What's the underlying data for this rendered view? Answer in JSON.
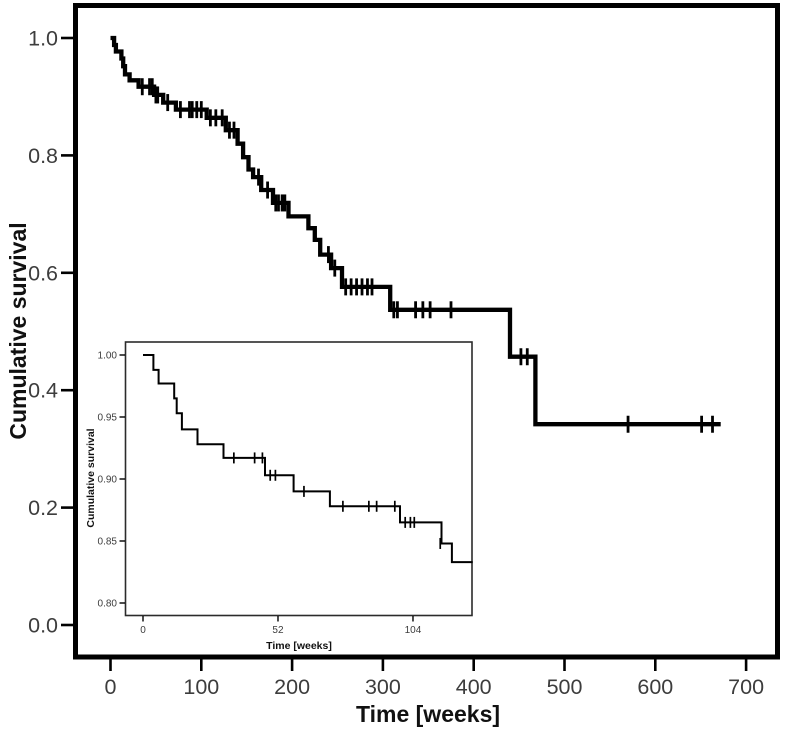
{
  "figure": {
    "background_color": "#ffffff",
    "line_color": "#000000",
    "inset_frame_color": "#2b2b2b",
    "tick_label_color": "#3d3d3d",
    "title_color": "#111111"
  },
  "chart_data": [
    {
      "id": "main",
      "type": "line",
      "subtype": "kaplan_meier_step_curve",
      "title": "",
      "xlabel": "Time [weeks]",
      "ylabel": "Cumulative survival",
      "xlim": [
        0,
        735
      ],
      "ylim": [
        0.0,
        1.0
      ],
      "x_ticks": [
        0,
        100,
        200,
        300,
        400,
        500,
        600,
        700
      ],
      "y_tick_labels": [
        "1.0",
        "0.8",
        "0.6",
        "0.4",
        "0.2",
        "0.0"
      ],
      "grid": false,
      "legend": null,
      "curve_end_time": 672,
      "steps": [
        [
          0,
          1.0
        ],
        [
          4,
          0.988
        ],
        [
          6,
          0.977
        ],
        [
          12,
          0.965
        ],
        [
          14,
          0.952
        ],
        [
          16,
          0.938
        ],
        [
          21,
          0.928
        ],
        [
          31,
          0.917
        ],
        [
          48,
          0.903
        ],
        [
          58,
          0.89
        ],
        [
          72,
          0.878
        ],
        [
          106,
          0.864
        ],
        [
          127,
          0.843
        ],
        [
          140,
          0.82
        ],
        [
          146,
          0.797
        ],
        [
          152,
          0.776
        ],
        [
          157,
          0.763
        ],
        [
          166,
          0.741
        ],
        [
          179,
          0.719
        ],
        [
          196,
          0.696
        ],
        [
          218,
          0.676
        ],
        [
          225,
          0.656
        ],
        [
          231,
          0.631
        ],
        [
          243,
          0.608
        ],
        [
          255,
          0.576
        ],
        [
          308,
          0.537
        ],
        [
          440,
          0.457
        ],
        [
          468,
          0.342
        ]
      ],
      "censor_marks": [
        [
          35,
          0.917
        ],
        [
          43,
          0.917
        ],
        [
          46,
          0.917
        ],
        [
          50,
          0.903
        ],
        [
          52,
          0.903
        ],
        [
          63,
          0.89
        ],
        [
          77,
          0.878
        ],
        [
          87,
          0.878
        ],
        [
          90,
          0.878
        ],
        [
          95,
          0.878
        ],
        [
          100,
          0.878
        ],
        [
          110,
          0.864
        ],
        [
          116,
          0.864
        ],
        [
          123,
          0.864
        ],
        [
          131,
          0.843
        ],
        [
          136,
          0.843
        ],
        [
          163,
          0.763
        ],
        [
          173,
          0.741
        ],
        [
          182,
          0.719
        ],
        [
          185,
          0.719
        ],
        [
          189,
          0.719
        ],
        [
          192,
          0.719
        ],
        [
          240,
          0.631
        ],
        [
          247,
          0.608
        ],
        [
          259,
          0.576
        ],
        [
          265,
          0.576
        ],
        [
          271,
          0.576
        ],
        [
          277,
          0.576
        ],
        [
          283,
          0.576
        ],
        [
          288,
          0.576
        ],
        [
          312,
          0.537
        ],
        [
          316,
          0.537
        ],
        [
          336,
          0.537
        ],
        [
          344,
          0.537
        ],
        [
          352,
          0.537
        ],
        [
          375,
          0.537
        ],
        [
          452,
          0.457
        ],
        [
          459,
          0.457
        ],
        [
          570,
          0.342
        ],
        [
          651,
          0.342
        ],
        [
          663,
          0.342
        ]
      ]
    },
    {
      "id": "inset",
      "type": "line",
      "subtype": "kaplan_meier_step_curve",
      "title": "",
      "xlabel": "Time [weeks]",
      "ylabel": "Cumulative survival",
      "xlim": [
        0,
        127
      ],
      "ylim": [
        0.8,
        1.0
      ],
      "x_ticks": [
        0,
        52,
        104
      ],
      "y_tick_labels": [
        "1.00",
        "0.95",
        "0.90",
        "0.85",
        "0.80"
      ],
      "grid": false,
      "legend": null,
      "curve_end_time": 127,
      "steps": [
        [
          0,
          1.0
        ],
        [
          4,
          0.988
        ],
        [
          6,
          0.977
        ],
        [
          12,
          0.965
        ],
        [
          13,
          0.953
        ],
        [
          15,
          0.94
        ],
        [
          21,
          0.928
        ],
        [
          31,
          0.917
        ],
        [
          47,
          0.903
        ],
        [
          58,
          0.89
        ],
        [
          72,
          0.878
        ],
        [
          99,
          0.865
        ],
        [
          115,
          0.848
        ],
        [
          119,
          0.833
        ]
      ],
      "censor_marks": [
        [
          35,
          0.917
        ],
        [
          43,
          0.917
        ],
        [
          46,
          0.917
        ],
        [
          49,
          0.903
        ],
        [
          51,
          0.903
        ],
        [
          62,
          0.89
        ],
        [
          77,
          0.878
        ],
        [
          87,
          0.878
        ],
        [
          90,
          0.878
        ],
        [
          97,
          0.878
        ],
        [
          101,
          0.865
        ],
        [
          103,
          0.865
        ],
        [
          104.5,
          0.865
        ],
        [
          114.5,
          0.848
        ]
      ]
    }
  ]
}
